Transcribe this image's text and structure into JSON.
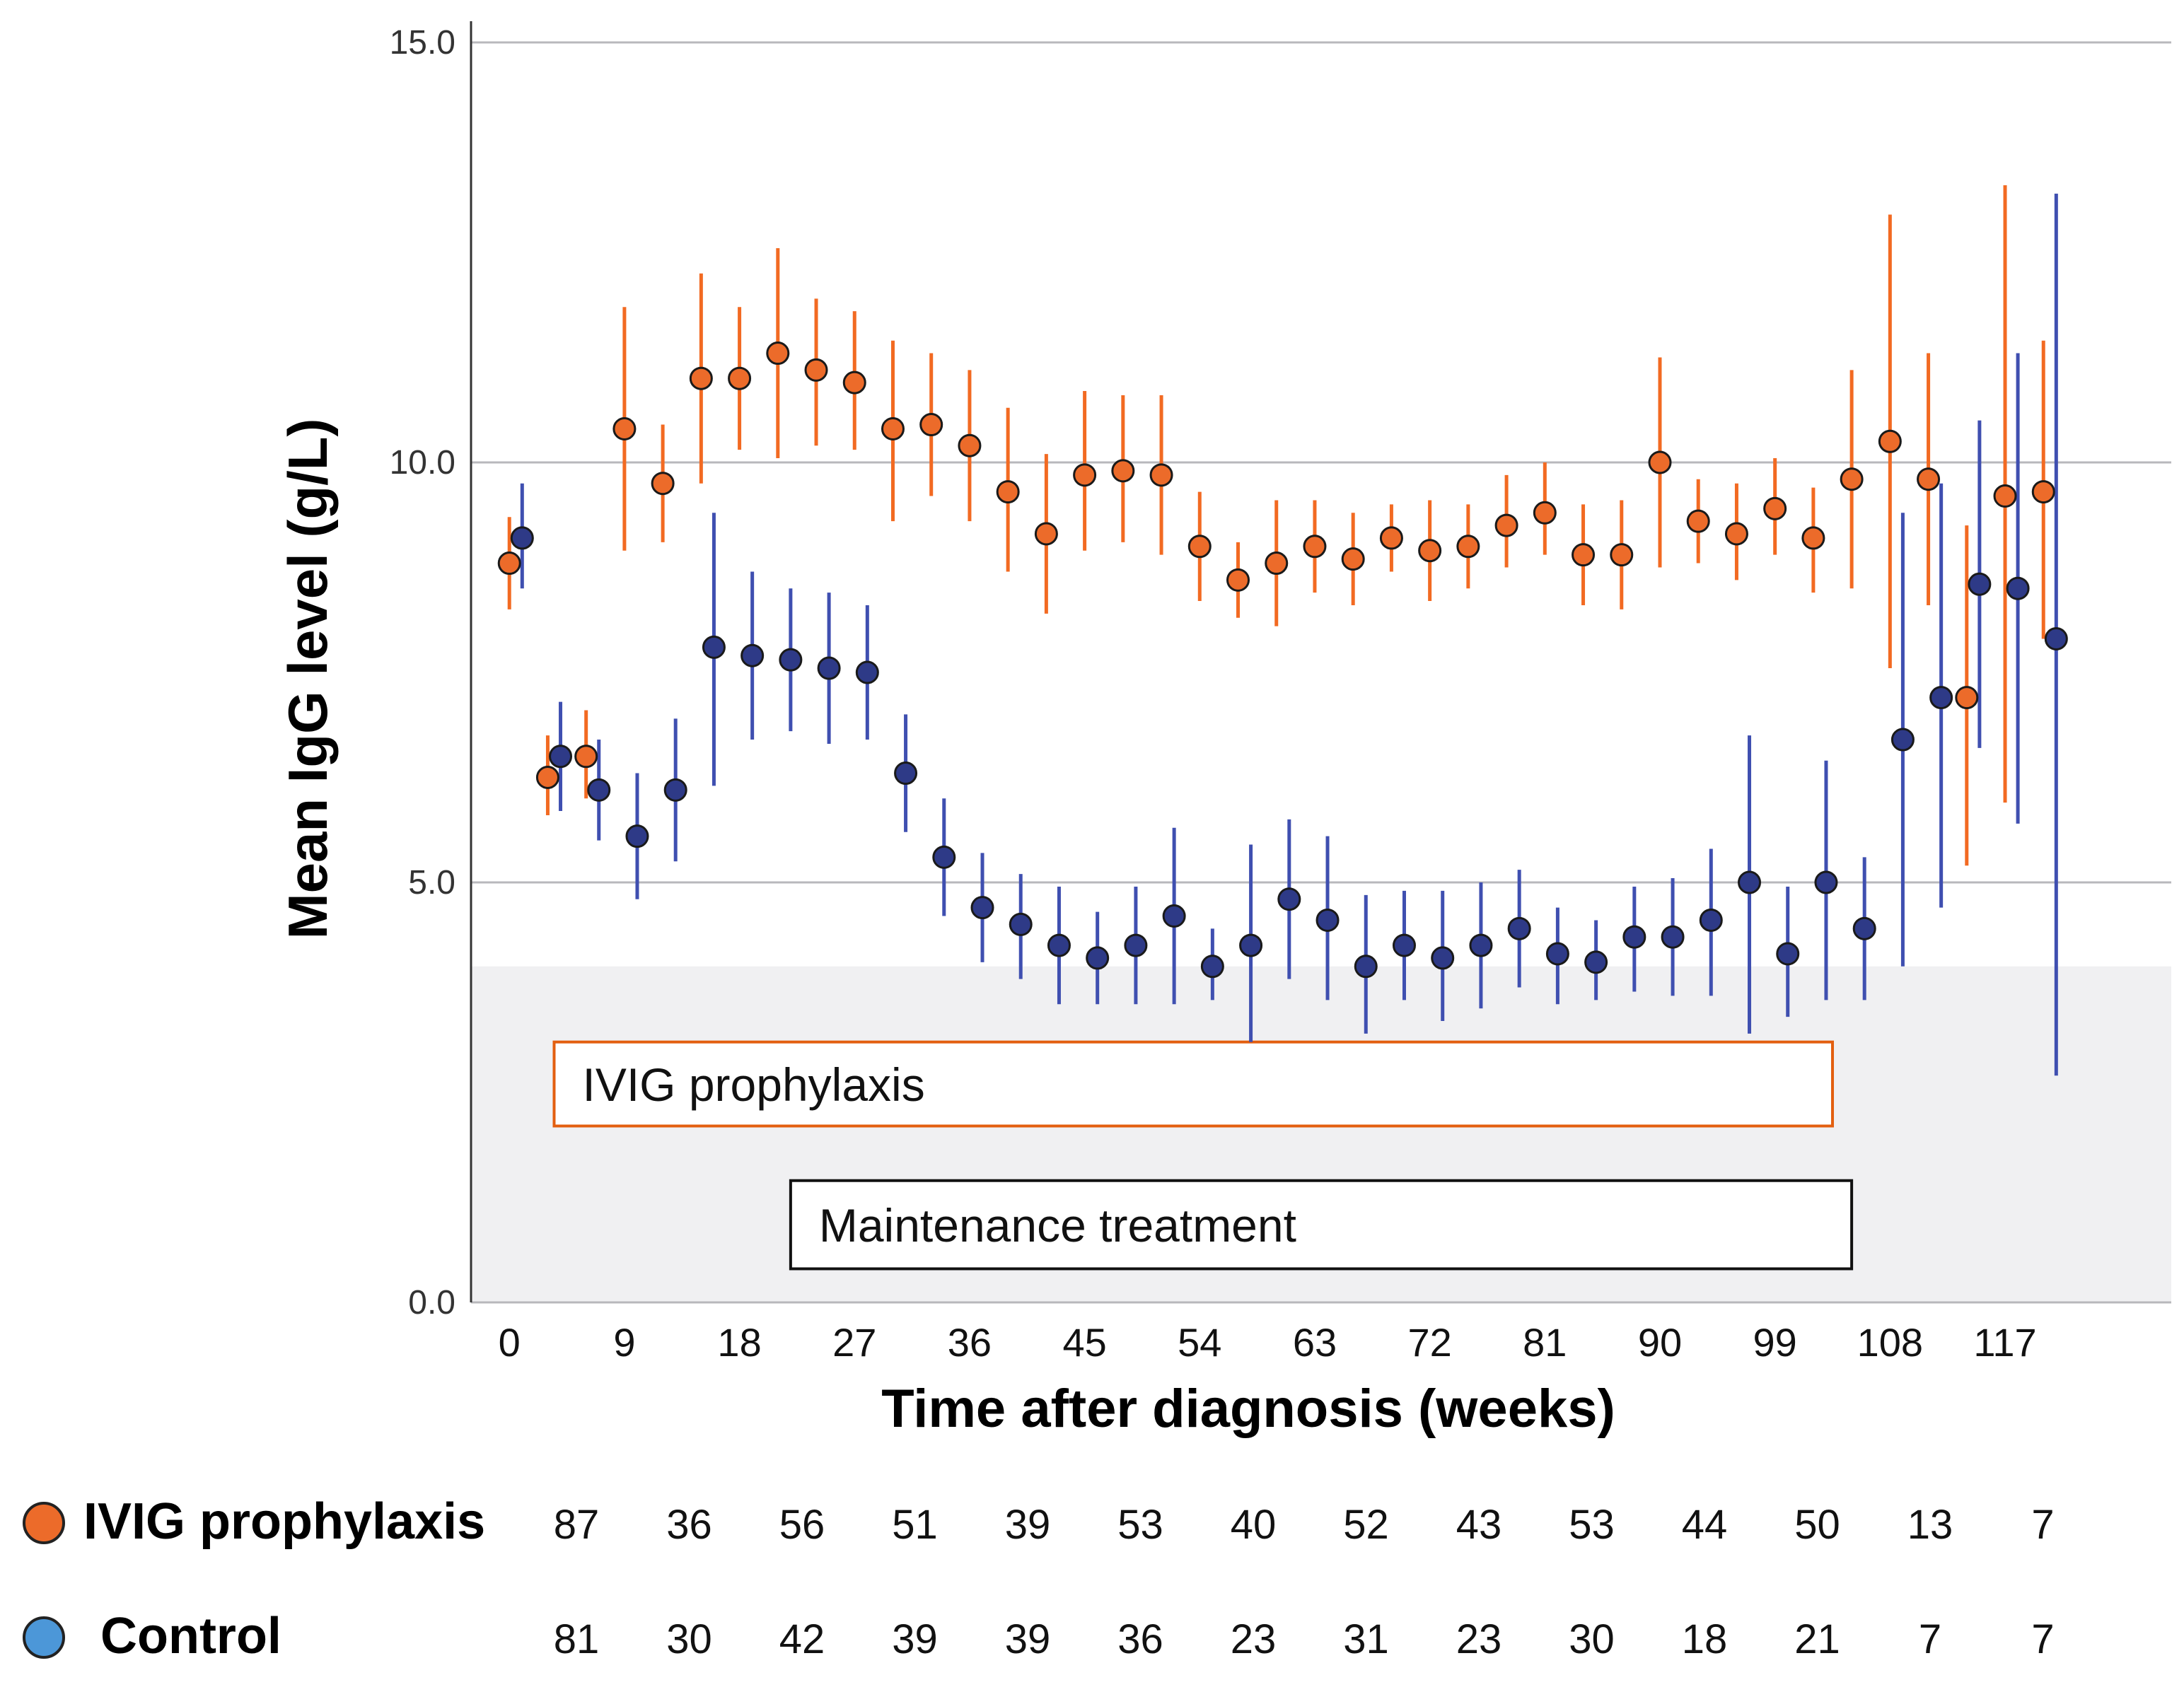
{
  "chart_data": {
    "type": "scatter",
    "title": "",
    "xlabel": "Time after diagnosis (weeks)",
    "ylabel": "Mean IgG level (g/L)",
    "xlim": [
      -3,
      130
    ],
    "ylim": [
      0,
      15
    ],
    "y_ticks": [
      "0.0",
      "5.0",
      "10.0",
      "15.0"
    ],
    "y_tick_values": [
      0,
      5,
      10,
      15
    ],
    "x_ticks": [
      "0",
      "9",
      "18",
      "27",
      "36",
      "45",
      "54",
      "63",
      "72",
      "81",
      "90",
      "99",
      "108",
      "117"
    ],
    "x_tick_values": [
      0,
      9,
      18,
      27,
      36,
      45,
      54,
      63,
      72,
      81,
      90,
      99,
      108,
      117
    ],
    "grid": true,
    "shaded_region": {
      "y_from": 0,
      "y_to": 4,
      "color": "#f0f0f2"
    },
    "annotations": [
      {
        "text": "IVIG prophylaxis",
        "x_from": 3.5,
        "x_to": 103.5,
        "y_from": 2.1,
        "y_to": 3.1,
        "border": "#e35f10"
      },
      {
        "text": "Maintenance treatment",
        "x_from": 22,
        "x_to": 105,
        "y_from": 0.4,
        "y_to": 1.45,
        "border": "#111111"
      }
    ],
    "series": [
      {
        "name": "IVIG prophylaxis",
        "color": "#ec6b2a",
        "bar_color": "#f26a22",
        "x": [
          0,
          3,
          6,
          9,
          12,
          15,
          18,
          21,
          24,
          27,
          30,
          33,
          36,
          39,
          42,
          45,
          48,
          51,
          54,
          57,
          60,
          63,
          66,
          69,
          72,
          75,
          78,
          81,
          84,
          87,
          90,
          93,
          96,
          99,
          102,
          105,
          108,
          111,
          114,
          117,
          120,
          123
        ],
        "y": [
          8.8,
          6.25,
          6.5,
          10.4,
          9.75,
          11.0,
          11.0,
          11.3,
          11.1,
          10.95,
          10.4,
          10.45,
          10.2,
          9.65,
          9.15,
          9.85,
          9.9,
          9.85,
          9.0,
          8.6,
          8.8,
          9.0,
          8.85,
          9.1,
          8.95,
          9.0,
          9.25,
          9.4,
          8.9,
          8.9,
          10.0,
          9.3,
          9.15,
          9.45,
          9.1,
          9.8,
          10.25,
          9.8,
          7.2,
          9.6,
          9.65,
          null
        ],
        "y_low": [
          8.25,
          5.8,
          6.0,
          8.95,
          9.05,
          9.75,
          10.15,
          10.05,
          10.2,
          10.15,
          9.3,
          9.6,
          9.3,
          8.7,
          8.2,
          8.95,
          9.05,
          8.9,
          8.35,
          8.15,
          8.05,
          8.45,
          8.3,
          8.7,
          8.35,
          8.5,
          8.75,
          8.9,
          8.3,
          8.25,
          8.75,
          8.8,
          8.6,
          8.9,
          8.45,
          8.5,
          7.55,
          8.3,
          5.2,
          5.95,
          7.9,
          null
        ],
        "y_high": [
          9.35,
          6.75,
          7.05,
          11.85,
          10.45,
          12.25,
          11.85,
          12.55,
          11.95,
          11.8,
          11.45,
          11.3,
          11.1,
          10.65,
          10.1,
          10.85,
          10.8,
          10.8,
          9.65,
          9.05,
          9.55,
          9.55,
          9.4,
          9.5,
          9.55,
          9.5,
          9.85,
          10.0,
          9.5,
          9.55,
          11.25,
          9.8,
          9.75,
          10.05,
          9.7,
          11.1,
          12.95,
          11.3,
          9.25,
          13.3,
          11.45,
          null
        ]
      },
      {
        "name": "Control",
        "color": "#2e3a87",
        "bar_color": "#3f4fb0",
        "x": [
          1,
          4,
          7,
          10,
          13,
          16,
          19,
          22,
          25,
          28,
          31,
          34,
          37,
          40,
          43,
          46,
          49,
          52,
          55,
          58,
          61,
          64,
          67,
          70,
          73,
          76,
          79,
          82,
          85,
          88,
          91,
          94,
          97,
          100,
          103,
          106,
          109,
          112,
          115,
          118,
          121,
          124
        ],
        "y": [
          9.1,
          6.5,
          6.1,
          5.55,
          6.1,
          7.8,
          7.7,
          7.65,
          7.55,
          7.5,
          6.3,
          5.3,
          4.7,
          4.5,
          4.25,
          4.1,
          4.25,
          4.6,
          4.0,
          4.25,
          4.8,
          4.55,
          4.0,
          4.25,
          4.1,
          4.25,
          4.45,
          4.15,
          4.05,
          4.35,
          4.35,
          4.55,
          5.0,
          4.15,
          5.0,
          4.45,
          6.7,
          7.2,
          8.55,
          8.5,
          7.9,
          null
        ],
        "y_low": [
          8.5,
          5.85,
          5.5,
          4.8,
          5.25,
          6.15,
          6.7,
          6.8,
          6.65,
          6.7,
          5.6,
          4.6,
          4.05,
          3.85,
          3.55,
          3.55,
          3.55,
          3.55,
          3.6,
          3.1,
          3.85,
          3.6,
          3.2,
          3.6,
          3.35,
          3.5,
          3.75,
          3.55,
          3.6,
          3.7,
          3.65,
          3.65,
          3.2,
          3.4,
          3.6,
          3.6,
          4.0,
          4.7,
          6.6,
          5.7,
          2.7,
          null
        ],
        "y_high": [
          9.75,
          7.15,
          6.7,
          6.3,
          6.95,
          9.4,
          8.7,
          8.5,
          8.45,
          8.3,
          7.0,
          6.0,
          5.35,
          5.1,
          4.95,
          4.65,
          4.95,
          5.65,
          4.45,
          5.45,
          5.75,
          5.55,
          4.85,
          4.9,
          4.9,
          5.0,
          5.15,
          4.7,
          4.55,
          4.95,
          5.05,
          5.4,
          6.75,
          4.95,
          6.45,
          5.3,
          9.4,
          9.75,
          10.5,
          11.3,
          13.2,
          null
        ]
      }
    ]
  },
  "counts_table": {
    "rows": [
      {
        "label": "IVIG prophylaxis",
        "color": "#ec6b2a",
        "values": [
          "87",
          "36",
          "56",
          "51",
          "39",
          "53",
          "40",
          "52",
          "43",
          "53",
          "44",
          "50",
          "13",
          "7"
        ]
      },
      {
        "label": "Control",
        "color": "#4c97d8",
        "values": [
          "81",
          "30",
          "42",
          "39",
          "39",
          "36",
          "23",
          "31",
          "23",
          "30",
          "18",
          "21",
          "7",
          "7"
        ]
      }
    ]
  }
}
